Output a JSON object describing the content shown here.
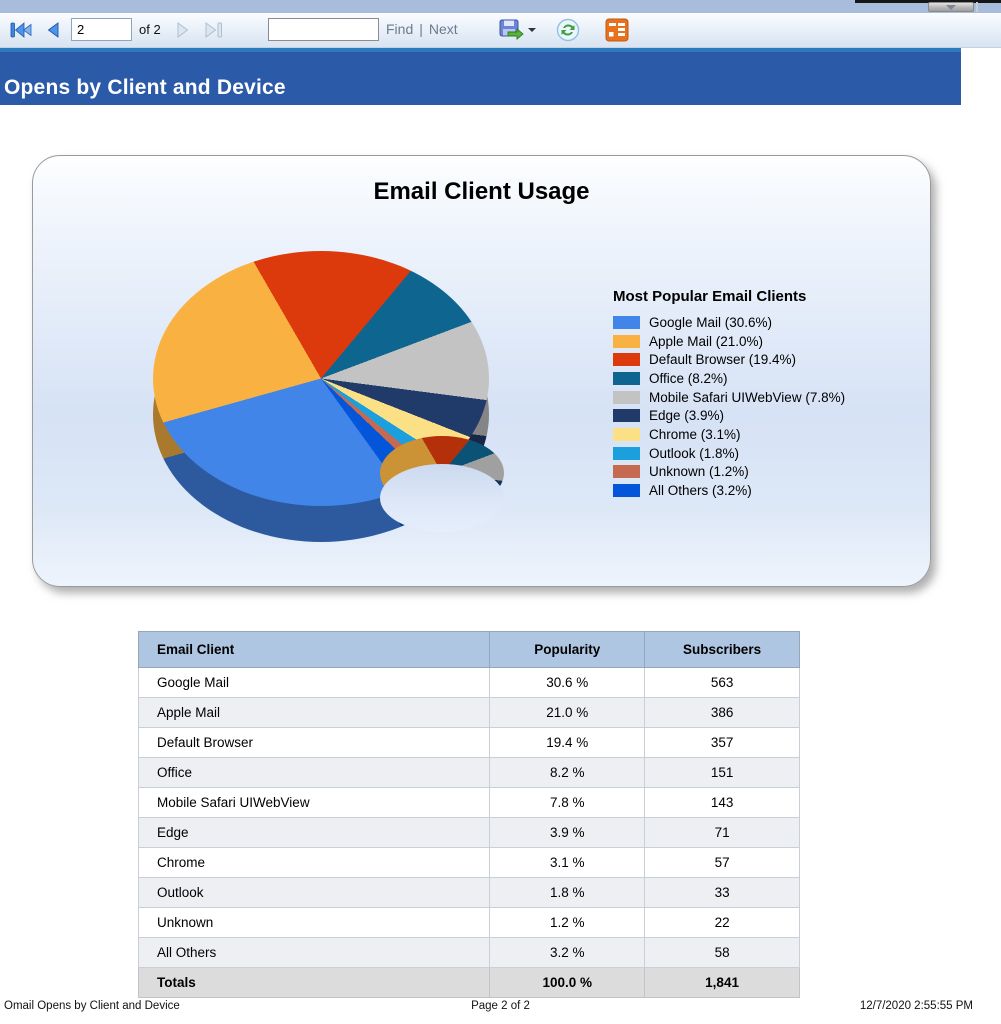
{
  "toolbar": {
    "page_current": "2",
    "page_of_label": "of 2",
    "find_value": "",
    "find_label": "Find",
    "find_separator": "|",
    "next_label": "Next"
  },
  "header": {
    "title": "Opens by Client and Device"
  },
  "chart_data": {
    "type": "pie",
    "subtype": "3d-donut",
    "title": "Email Client Usage",
    "legend_title": "Most Popular Email Clients",
    "legend_position": "right",
    "rotation_deg": -215.76,
    "series": [
      {
        "name": "Google Mail",
        "value": 30.6,
        "color": "#4285e8",
        "label": "Google Mail (30.6%)"
      },
      {
        "name": "Apple Mail",
        "value": 21.0,
        "color": "#f9b242",
        "label": "Apple Mail (21.0%)"
      },
      {
        "name": "Default Browser",
        "value": 19.4,
        "color": "#dc3a0d",
        "label": "Default Browser (19.4%)"
      },
      {
        "name": "Office",
        "value": 8.2,
        "color": "#0e6590",
        "label": "Office (8.2%)"
      },
      {
        "name": "Mobile Safari UIWebView",
        "value": 7.8,
        "color": "#c3c3c3",
        "label": "Mobile Safari UIWebView (7.8%)"
      },
      {
        "name": "Edge",
        "value": 3.9,
        "color": "#203a69",
        "label": "Edge (3.9%)"
      },
      {
        "name": "Chrome",
        "value": 3.1,
        "color": "#fbe086",
        "label": "Chrome (3.1%)"
      },
      {
        "name": "Outlook",
        "value": 1.8,
        "color": "#1b9fdd",
        "label": "Outlook (1.8%)"
      },
      {
        "name": "Unknown",
        "value": 1.2,
        "color": "#c56a50",
        "label": "Unknown (1.2%)"
      },
      {
        "name": "All Others",
        "value": 3.2,
        "color": "#0356d9",
        "label": "All Others (3.2%)"
      }
    ]
  },
  "table": {
    "columns": [
      "Email Client",
      "Popularity",
      "Subscribers"
    ],
    "rows": [
      [
        "Google Mail",
        "30.6 %",
        "563"
      ],
      [
        "Apple Mail",
        "21.0 %",
        "386"
      ],
      [
        "Default Browser",
        "19.4 %",
        "357"
      ],
      [
        "Office",
        "8.2 %",
        "151"
      ],
      [
        "Mobile Safari UIWebView",
        "7.8 %",
        "143"
      ],
      [
        "Edge",
        "3.9 %",
        "71"
      ],
      [
        "Chrome",
        "3.1 %",
        "57"
      ],
      [
        "Outlook",
        "1.8 %",
        "33"
      ],
      [
        "Unknown",
        "1.2 %",
        "22"
      ],
      [
        "All Others",
        "3.2 %",
        "58"
      ]
    ],
    "totals": [
      "Totals",
      "100.0 %",
      "1,841"
    ]
  },
  "footer": {
    "report_name": "Omail Opens by Client and Device",
    "page_info": "Page 2 of 2",
    "timestamp": "12/7/2020 2:55:55 PM"
  },
  "colors": {
    "title_bar": "#2b5aa8",
    "accent_line": "#2e7ac0",
    "table_header_bg": "#aec6e2",
    "totals_bg": "#dcdcdc",
    "toolbar_strip": "#a8bcdc"
  }
}
